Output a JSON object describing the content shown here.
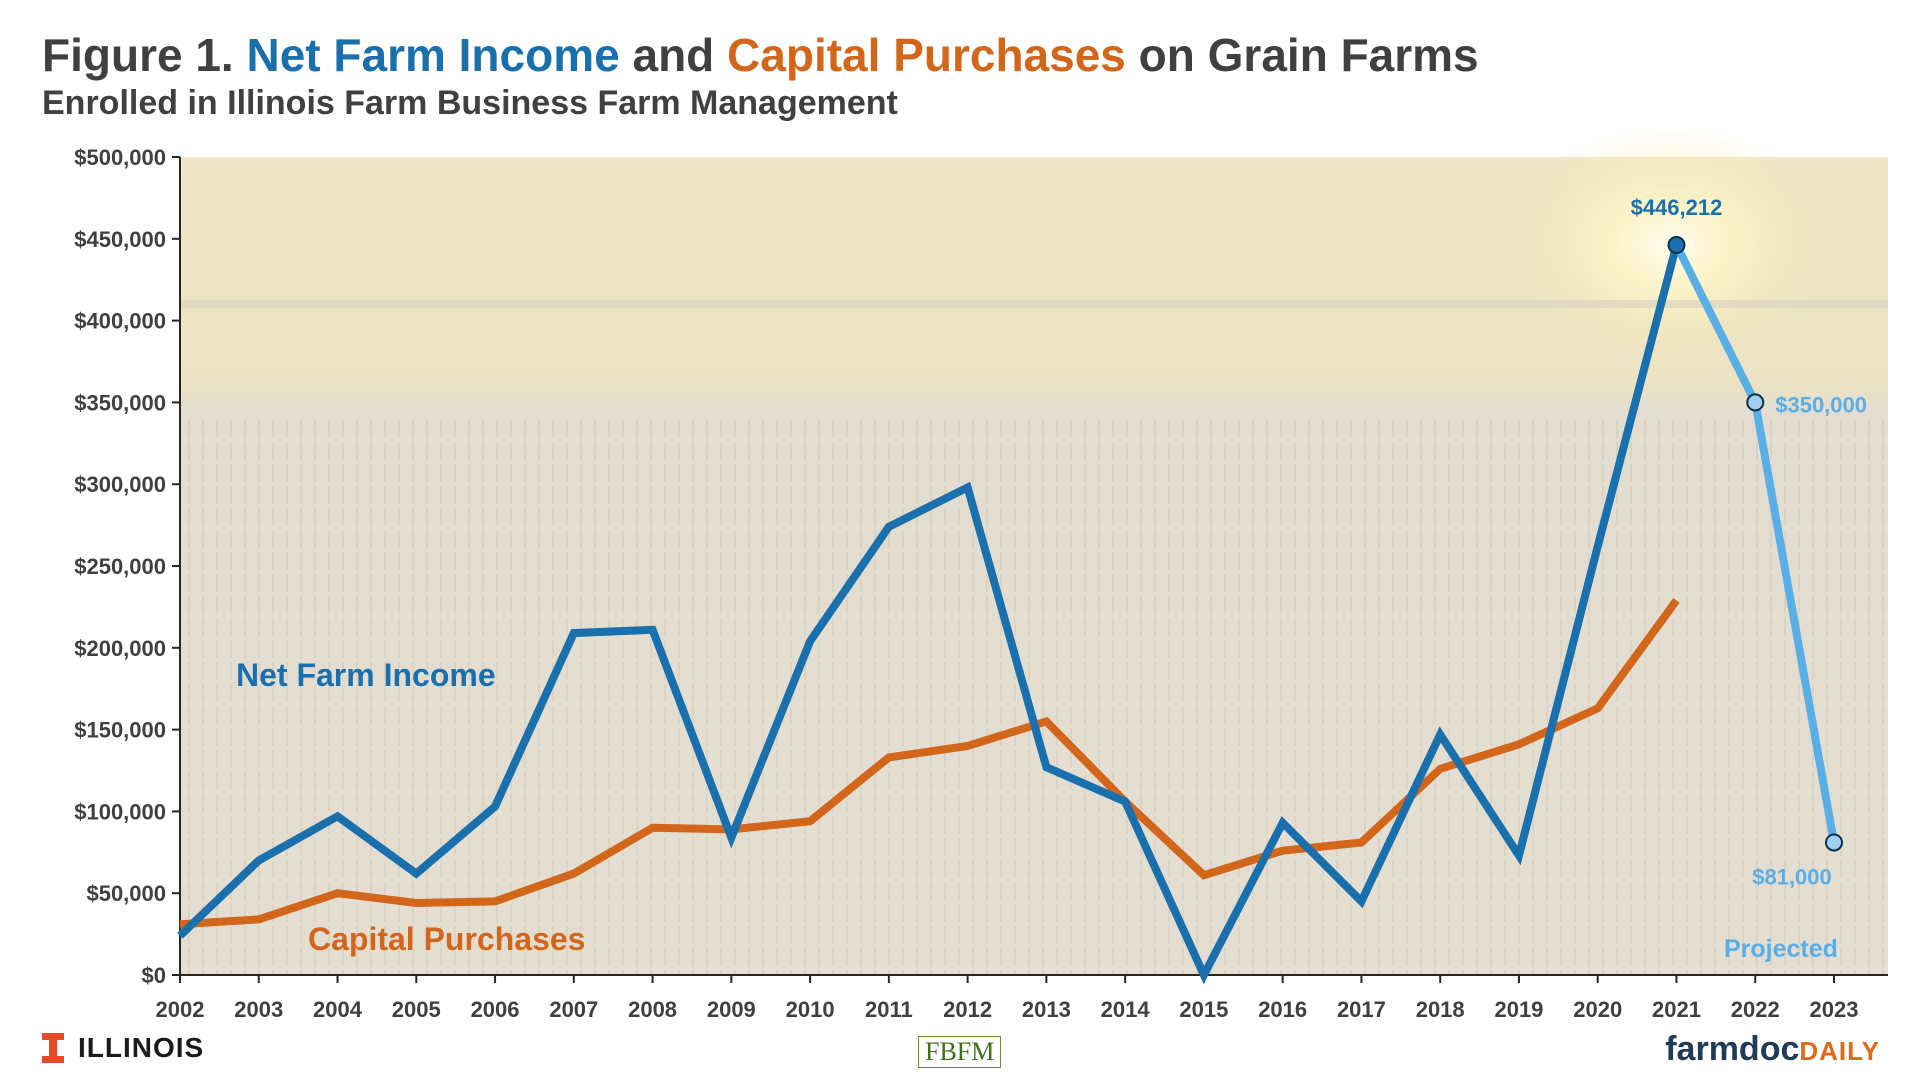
{
  "title": {
    "prefix": "Figure 1.  ",
    "part1": "Net Farm Income",
    "middle": " and ",
    "part2": "Capital Purchases",
    "suffix": " on Grain Farms"
  },
  "subtitle": "Enrolled in Illinois Farm Business Farm Management",
  "colors": {
    "net_farm_income": "#1a6fad",
    "capital_purchases": "#d2661b",
    "projected": "#5aaee6",
    "text": "#404040"
  },
  "chart_data": {
    "type": "line",
    "x": [
      2002,
      2003,
      2004,
      2005,
      2006,
      2007,
      2008,
      2009,
      2010,
      2011,
      2012,
      2013,
      2014,
      2015,
      2016,
      2017,
      2018,
      2019,
      2020,
      2021,
      2022,
      2023
    ],
    "ylim": [
      0,
      500000
    ],
    "y_ticks": [
      0,
      50000,
      100000,
      150000,
      200000,
      250000,
      300000,
      350000,
      400000,
      450000,
      500000
    ],
    "y_tick_labels": [
      "$0",
      "$50,000",
      "$100,000",
      "$150,000",
      "$200,000",
      "$250,000",
      "$300,000",
      "$350,000",
      "$400,000",
      "$450,000",
      "$500,000"
    ],
    "grid": false,
    "series": [
      {
        "name": "Net Farm Income",
        "color": "#1a6fad",
        "x": [
          2002,
          2003,
          2004,
          2005,
          2006,
          2007,
          2008,
          2009,
          2010,
          2011,
          2012,
          2013,
          2014,
          2015,
          2016,
          2017,
          2018,
          2019,
          2020,
          2021
        ],
        "values": [
          24000,
          70000,
          97000,
          62000,
          103000,
          209000,
          211000,
          84000,
          204000,
          274000,
          298000,
          127000,
          106000,
          0,
          93000,
          45000,
          147000,
          73000,
          262000,
          446212
        ]
      },
      {
        "name": "Projected",
        "color": "#5aaee6",
        "x": [
          2021,
          2022,
          2023
        ],
        "values": [
          446212,
          350000,
          81000
        ]
      },
      {
        "name": "Capital Purchases",
        "color": "#d2661b",
        "x": [
          2002,
          2003,
          2004,
          2005,
          2006,
          2007,
          2008,
          2009,
          2010,
          2011,
          2012,
          2013,
          2014,
          2015,
          2016,
          2017,
          2018,
          2019,
          2020,
          2021
        ],
        "values": [
          31000,
          34000,
          50000,
          44000,
          45000,
          62000,
          90000,
          89000,
          94000,
          133000,
          140000,
          155000,
          106000,
          61000,
          76000,
          81000,
          126000,
          141000,
          163000,
          229000
        ]
      }
    ],
    "annotations": [
      {
        "text": "$446,212",
        "x": 2021,
        "y": 446212,
        "color": "#1a6fad"
      },
      {
        "text": "$350,000",
        "x": 2022,
        "y": 350000,
        "color": "#5aaee6"
      },
      {
        "text": "$81,000",
        "x": 2023,
        "y": 81000,
        "color": "#5aaee6"
      }
    ],
    "series_labels": [
      {
        "text": "Net Farm Income",
        "color": "#1a6fad"
      },
      {
        "text": "Capital Purchases",
        "color": "#d2661b"
      },
      {
        "text": "Projected",
        "color": "#5aaee6"
      }
    ]
  },
  "logos": {
    "illinois": "ILLINOIS",
    "fbfm": "FBFM",
    "farmdoc": "farmdoc",
    "daily": "DAILY"
  }
}
